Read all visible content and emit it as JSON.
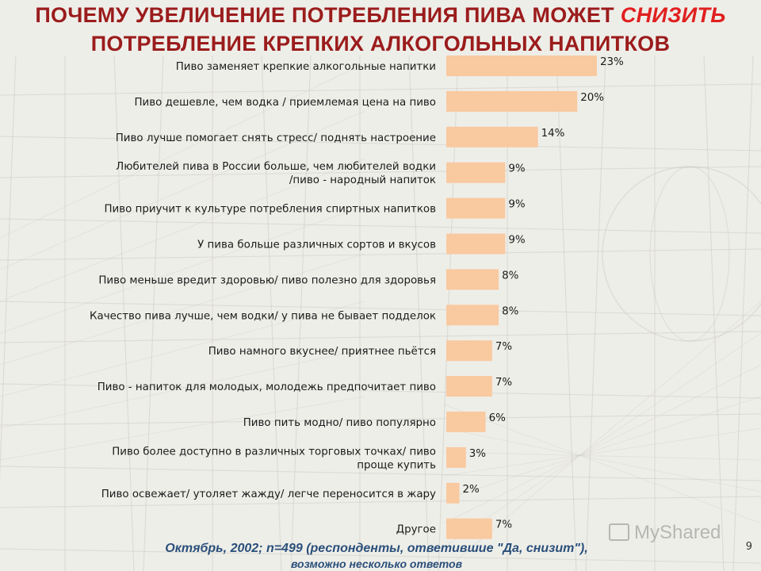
{
  "slide": {
    "title_line1_prefix": "ПОЧЕМУ УВЕЛИЧЕНИЕ ПОТРЕБЛЕНИЯ ПИВА МОЖЕТ ",
    "title_line1_highlight": "СНИЗИТЬ",
    "title_line2": "ПОТРЕБЛЕНИЕ КРЕПКИХ АЛКОГОЛЬНЫХ НАПИТКОВ",
    "footnote_line1": "Октябрь, 2002; n=499 (респонденты, ответившие \"Да, снизит\"),",
    "footnote_line2": "возможно несколько ответов",
    "page_number": "9",
    "watermark": "MyShared",
    "colors": {
      "title": "#9b1c1c",
      "highlight": "#e02020",
      "bar": "#f9c9a0",
      "footnote": "#2a4f7a"
    }
  },
  "chart_data": {
    "type": "bar",
    "orientation": "horizontal",
    "categories": [
      [
        "Пиво заменяет крепкие алкогольные напитки"
      ],
      [
        "Пиво дешевле, чем водка / приемлемая цена на пиво"
      ],
      [
        "Пиво лучше помогает снять стресс/ поднять настроение"
      ],
      [
        "Любителей пива в России больше, чем любителей водки",
        "/пиво - народный напиток"
      ],
      [
        "Пиво приучит к культуре потребления спиртных напитков"
      ],
      [
        "У пива больше различных сортов и вкусов"
      ],
      [
        "Пиво меньше вредит здоровью/ пиво полезно для здоровья"
      ],
      [
        "Качество пива лучше, чем водки/ у пива не бывает подделок"
      ],
      [
        "Пиво намного вкуснее/ приятнее пьётся"
      ],
      [
        "Пиво - напиток для молодых, молодежь предпочитает пиво"
      ],
      [
        "Пиво пить модно/ пиво популярно"
      ],
      [
        "Пиво более доступно в различных торговых точках/ пиво",
        "проще купить"
      ],
      [
        "Пиво освежает/ утоляет жажду/ легче переносится в жару"
      ],
      [
        "Другое"
      ]
    ],
    "values": [
      23,
      20,
      14,
      9,
      9,
      9,
      8,
      8,
      7,
      7,
      6,
      3,
      2,
      7
    ],
    "value_labels": [
      "23%",
      "20%",
      "14%",
      "9%",
      "9%",
      "9%",
      "8%",
      "8%",
      "7%",
      "7%",
      "6%",
      "3%",
      "2%",
      "7%"
    ],
    "unit": "%",
    "xlim": [
      0,
      30
    ],
    "grid": false,
    "bar_color": "#f9c9a0"
  }
}
